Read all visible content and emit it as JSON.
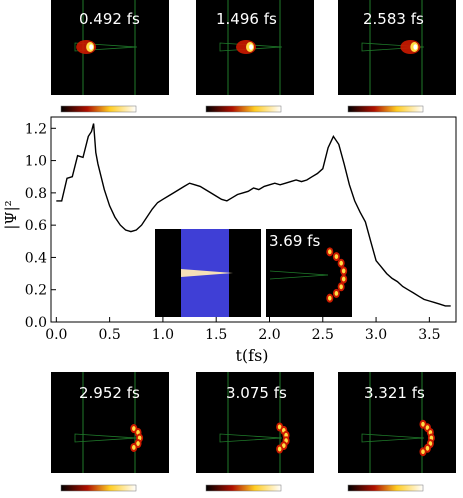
{
  "snapshots_top": [
    {
      "label": "0.492 fs",
      "tip": 0.18
    },
    {
      "label": "1.496 fs",
      "tip": 0.42
    },
    {
      "label": "2.583 fs",
      "tip": 0.78
    }
  ],
  "snapshots_bottom": [
    {
      "label": "2.952 fs",
      "ring": 0.55
    },
    {
      "label": "3.075 fs",
      "ring": 0.7
    },
    {
      "label": "3.321 fs",
      "ring": 0.95
    }
  ],
  "inset": {
    "label": "3.69 fs"
  },
  "colors": {
    "probe": "#3f3fd6",
    "tip": "#f5e0b8",
    "field_hot": "#ffffff",
    "field_mid": "#ffdd44",
    "field_low": "#cc1a00",
    "guide": "#1f7a2a"
  },
  "chart_data": {
    "type": "line",
    "xlabel": "t(fs)",
    "ylabel": "|Ψ|²",
    "xlim": [
      -0.05,
      3.75
    ],
    "ylim": [
      0,
      1.27
    ],
    "xticks": [
      "0.0",
      "0.5",
      "1.0",
      "1.5",
      "2.0",
      "2.5",
      "3.0",
      "3.5"
    ],
    "yticks": [
      "0.0",
      "0.2",
      "0.4",
      "0.6",
      "0.8",
      "1.0",
      "1.2"
    ],
    "series": [
      {
        "x": [
          0.0,
          0.05,
          0.1,
          0.15,
          0.2,
          0.25,
          0.3,
          0.33,
          0.35,
          0.37,
          0.39,
          0.42,
          0.45,
          0.5,
          0.55,
          0.6,
          0.65,
          0.7,
          0.75,
          0.8,
          0.85,
          0.9,
          0.95,
          1.0,
          1.05,
          1.1,
          1.15,
          1.2,
          1.25,
          1.3,
          1.35,
          1.4,
          1.45,
          1.5,
          1.55,
          1.6,
          1.65,
          1.7,
          1.75,
          1.8,
          1.85,
          1.9,
          1.95,
          2.0,
          2.05,
          2.1,
          2.15,
          2.2,
          2.25,
          2.3,
          2.35,
          2.4,
          2.45,
          2.5,
          2.55,
          2.6,
          2.65,
          2.7,
          2.75,
          2.8,
          2.85,
          2.9,
          2.95,
          3.0,
          3.05,
          3.1,
          3.15,
          3.2,
          3.25,
          3.3,
          3.35,
          3.4,
          3.45,
          3.5,
          3.55,
          3.6,
          3.65,
          3.7
        ],
        "y": [
          0.72,
          0.78,
          0.86,
          0.93,
          1.0,
          1.05,
          1.12,
          1.18,
          1.23,
          1.05,
          0.98,
          0.9,
          0.82,
          0.72,
          0.65,
          0.6,
          0.57,
          0.56,
          0.57,
          0.6,
          0.65,
          0.7,
          0.74,
          0.76,
          0.78,
          0.8,
          0.82,
          0.84,
          0.86,
          0.85,
          0.84,
          0.82,
          0.8,
          0.78,
          0.76,
          0.75,
          0.77,
          0.79,
          0.8,
          0.81,
          0.83,
          0.82,
          0.84,
          0.85,
          0.86,
          0.85,
          0.86,
          0.87,
          0.88,
          0.87,
          0.88,
          0.9,
          0.92,
          0.95,
          1.08,
          1.15,
          1.1,
          0.98,
          0.85,
          0.75,
          0.68,
          0.62,
          0.5,
          0.38,
          0.34,
          0.3,
          0.27,
          0.25,
          0.22,
          0.2,
          0.18,
          0.16,
          0.14,
          0.13,
          0.12,
          0.11,
          0.1,
          0.1
        ]
      }
    ]
  }
}
